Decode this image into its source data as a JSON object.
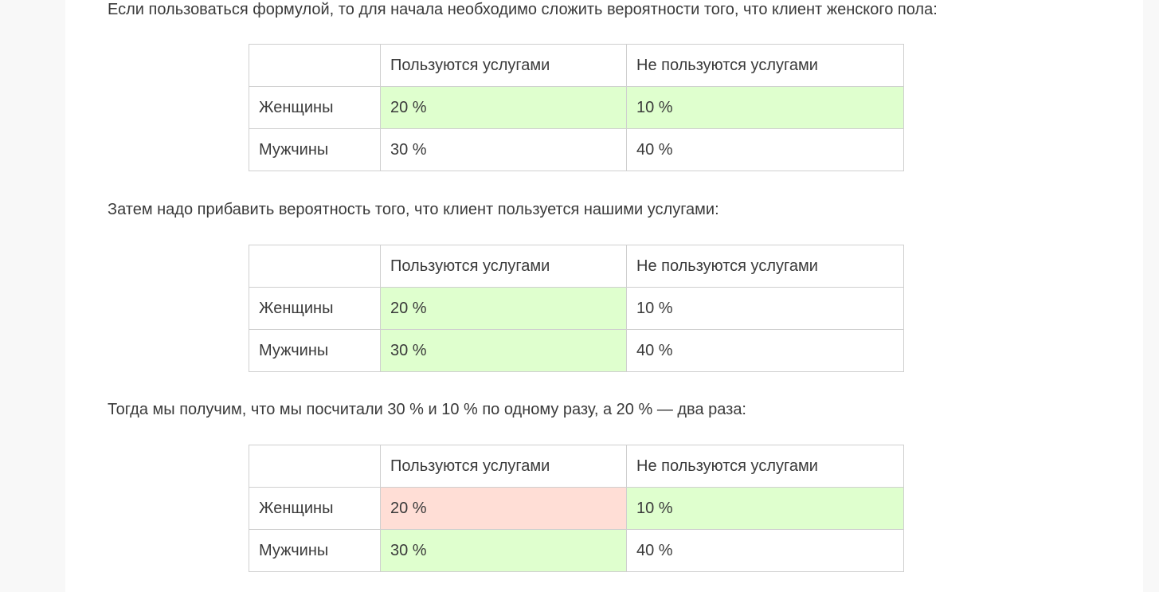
{
  "paragraphs": [
    "Если пользоваться формулой, то для начала необходимо сложить вероятности того, что клиент женского пола:",
    "Затем надо прибавить вероятность того, что клиент пользуется нашими услугами:",
    "Тогда мы получим, что мы посчитали 30 % и 10 % по одному разу, а 20 % — два раза:"
  ],
  "table_headers": [
    "",
    "Пользуются услугами",
    "Не пользуются услугами"
  ],
  "row_labels": [
    "Женщины",
    "Мужчины"
  ],
  "cells": [
    [
      "20 %",
      "10 %"
    ],
    [
      "30 %",
      "40 %"
    ]
  ],
  "highlight_colors": {
    "green": "#dfffce",
    "red": "#ffded6"
  },
  "tables": [
    {
      "highlights": [
        [
          "green",
          "green"
        ],
        [
          "none",
          "none"
        ]
      ]
    },
    {
      "highlights": [
        [
          "green",
          "none"
        ],
        [
          "green",
          "none"
        ]
      ]
    },
    {
      "highlights": [
        [
          "red",
          "green"
        ],
        [
          "green",
          "none"
        ]
      ]
    }
  ]
}
